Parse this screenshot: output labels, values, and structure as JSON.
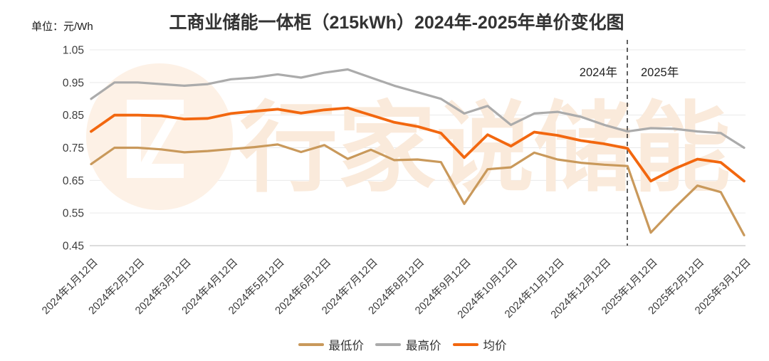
{
  "header": {
    "title": "工商业储能一体柜（215kWh）2024年-2025年单价变化图",
    "unit_label": "单位：元/Wh"
  },
  "annotations": {
    "left_year": "2024年",
    "right_year": "2025年"
  },
  "watermark": {
    "text": "行家说储能",
    "text_color": "#FAEADB",
    "circle_color": "#FDF1E6"
  },
  "chart_data": {
    "type": "line",
    "title": "工商业储能一体柜（215kWh）2024年-2025年单价变化图",
    "xlabel": "",
    "ylabel": "元/Wh",
    "ylim": [
      0.45,
      1.05
    ],
    "grid": true,
    "legend_position": "bottom",
    "y_tick_labels": [
      "1.05",
      "0.95",
      "0.85",
      "0.75",
      "0.65",
      "0.55",
      "0.45"
    ],
    "x_tick_labels": [
      "2024年1月12日",
      "2024年2月12日",
      "2024年3月12日",
      "2024年4月12日",
      "2024年5月12日",
      "2024年6月12日",
      "2024年7月12日",
      "2024年8月12日",
      "2024年9月12日",
      "2024年10月12日",
      "2024年11月12日",
      "2024年12月12日",
      "2025年1月12日",
      "2025年2月12日",
      "2025年3月12日"
    ],
    "label_every": 2,
    "series": [
      {
        "name": "最低价",
        "color": "#C9995B",
        "values": [
          0.7,
          0.75,
          0.75,
          0.745,
          0.736,
          0.74,
          0.746,
          0.752,
          0.76,
          0.737,
          0.758,
          0.716,
          0.744,
          0.712,
          0.714,
          0.706,
          0.578,
          0.684,
          0.69,
          0.735,
          0.714,
          0.704,
          0.698,
          0.694,
          0.49,
          0.565,
          0.634,
          0.614,
          0.482
        ]
      },
      {
        "name": "最高价",
        "color": "#ABABAB",
        "values": [
          0.9,
          0.95,
          0.95,
          0.945,
          0.94,
          0.945,
          0.96,
          0.965,
          0.975,
          0.965,
          0.98,
          0.99,
          0.965,
          0.94,
          0.92,
          0.9,
          0.855,
          0.878,
          0.82,
          0.855,
          0.86,
          0.845,
          0.82,
          0.8,
          0.81,
          0.808,
          0.8,
          0.795,
          0.75
        ]
      },
      {
        "name": "均价",
        "color": "#F2670F",
        "values": [
          0.8,
          0.85,
          0.85,
          0.848,
          0.838,
          0.84,
          0.855,
          0.862,
          0.868,
          0.856,
          0.866,
          0.872,
          0.85,
          0.828,
          0.815,
          0.795,
          0.72,
          0.79,
          0.755,
          0.798,
          0.788,
          0.772,
          0.762,
          0.748,
          0.648,
          0.685,
          0.715,
          0.705,
          0.648
        ]
      }
    ]
  }
}
